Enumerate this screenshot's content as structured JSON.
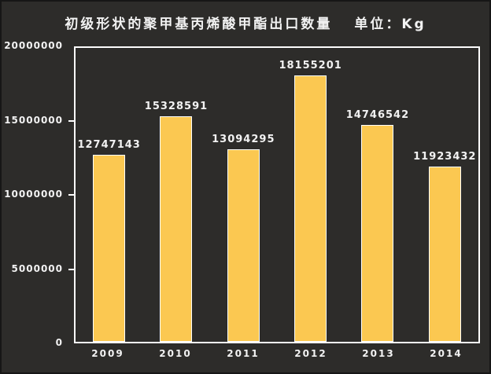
{
  "title": {
    "text": "初级形状的聚甲基丙烯酸甲酯出口数量",
    "unit_label": "单位：Kg"
  },
  "colors": {
    "background": "#2d2c2a",
    "bar_fill": "#fbc851",
    "bar_border": "#fdfdfd",
    "plot_border": "#fdfdfd",
    "text": "#f2f2f2"
  },
  "chart_data": {
    "type": "bar",
    "title": "初级形状的聚甲基丙烯酸甲酯出口数量",
    "unit_label": "单位：Kg",
    "categories": [
      "2009",
      "2010",
      "2011",
      "2012",
      "2013",
      "2014"
    ],
    "values": [
      12747143,
      15328591,
      13094295,
      18155201,
      14746542,
      11923432
    ],
    "bar_labels": [
      "12747143",
      "15328591",
      "13094295",
      "18155201",
      "14746542",
      "11923432"
    ],
    "xlabel": "",
    "ylabel": "",
    "ylim": [
      0,
      20000000
    ],
    "ytick_step": 5000000,
    "yticks": [
      0,
      5000000,
      10000000,
      15000000,
      20000000
    ],
    "ytick_labels": [
      "0",
      "5000000",
      "10000000",
      "15000000",
      "20000000"
    ],
    "grid": false,
    "legend_position": "none",
    "bar_color": "#fbc851",
    "background_color": "#2d2c2a"
  }
}
